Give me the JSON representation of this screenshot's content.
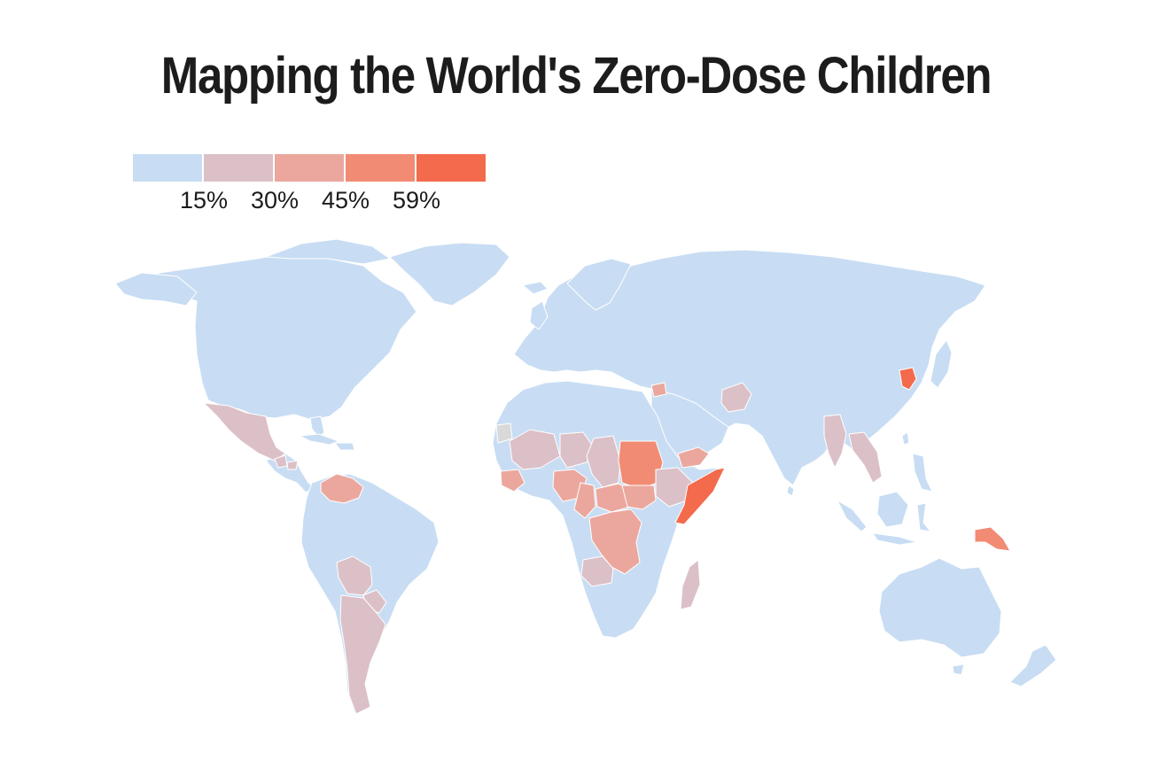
{
  "title": "Mapping the World's Zero-Dose Children",
  "legend": {
    "colors": [
      "#c8ddf3",
      "#dcc0c7",
      "#eba79d",
      "#f18b73",
      "#f46a4c"
    ],
    "labels": [
      "15%",
      "30%",
      "45%",
      "59%"
    ]
  },
  "colors": {
    "background": "#ffffff",
    "no_data": "#d9d9d9",
    "border": "#ffffff"
  },
  "map": {
    "measure": "share of zero-dose children",
    "classes": [
      {
        "color": "#dcc0c7",
        "regions": [
          "mexico",
          "guatemala",
          "honduras",
          "argentina",
          "bolivia",
          "paraguay",
          "mali",
          "niger",
          "chad",
          "ethiopia",
          "angola",
          "madagascar",
          "afghanistan",
          "myanmar",
          "laos"
        ]
      },
      {
        "color": "#eba79d",
        "regions": [
          "venezuela",
          "guinea",
          "nigeria",
          "central-african-republic",
          "democratic-republic-of-congo",
          "south-sudan",
          "yemen",
          "syria",
          "cameroon"
        ]
      },
      {
        "color": "#f18b73",
        "regions": [
          "sudan",
          "papua-new-guinea"
        ]
      },
      {
        "color": "#f46a4c",
        "regions": [
          "somalia",
          "north-korea"
        ]
      },
      {
        "color": "#d9d9d9",
        "regions": [
          "western-sahara"
        ]
      }
    ]
  }
}
